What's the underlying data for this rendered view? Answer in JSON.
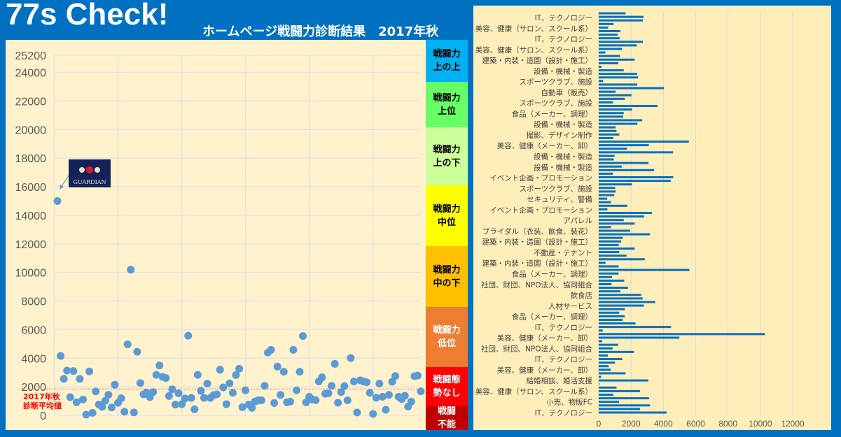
{
  "header": {
    "title": "77s Check!",
    "subtitle": "ホームページ戦闘力診断結果　2017年秋"
  },
  "bands": [
    {
      "label": "戦闘力\n上の上",
      "color": "#00b0f0",
      "text_color": "#000000"
    },
    {
      "label": "戦闘力\n上位",
      "color": "#66ff66",
      "text_color": "#000000"
    },
    {
      "label": "戦闘力\n上の下",
      "color": "#ccff99",
      "text_color": "#000000"
    },
    {
      "label": "戦闘力\n中位",
      "color": "#ffff00",
      "text_color": "#000000"
    },
    {
      "label": "戦闘力\n中の下",
      "color": "#ffc000",
      "text_color": "#000000"
    },
    {
      "label": "戦闘力\n低位",
      "color": "#ed7d31",
      "text_color": "#ffffff"
    },
    {
      "label": "戦闘態\n勢なし",
      "color": "#ff0000",
      "text_color": "#ffffff"
    },
    {
      "label": "戦闘\n不能",
      "color": "#c00000",
      "text_color": "#ffffff"
    }
  ],
  "average_label": "2017年秋\n診断平均値",
  "logo_text": "GUARDIAN",
  "chart_data": [
    {
      "type": "scatter",
      "ylim": [
        0,
        25200
      ],
      "yticks": [
        0,
        2000,
        4000,
        6000,
        8000,
        10000,
        12000,
        14000,
        16000,
        18000,
        20000,
        22000,
        24000,
        25200
      ],
      "xlim": [
        0,
        115
      ],
      "grid": true,
      "average_line": 1850,
      "color": "#5b9bd5",
      "annotation": "GUARDIAN",
      "y": [
        15000,
        4160,
        2550,
        3130,
        1270,
        3100,
        910,
        2550,
        1110,
        50,
        3070,
        170,
        1670,
        750,
        595,
        1020,
        1440,
        550,
        2140,
        880,
        1190,
        250,
        4970,
        10190,
        200,
        4450,
        2260,
        1470,
        1590,
        1270,
        1630,
        2830,
        3490,
        2690,
        2610,
        1350,
        1820,
        750,
        1540,
        780,
        1180,
        5570,
        1220,
        420,
        2830,
        1710,
        1220,
        2220,
        1220,
        1420,
        1470,
        3190,
        1950,
        780,
        2240,
        1570,
        2820,
        3260,
        570,
        1750,
        750,
        520,
        970,
        1050,
        1050,
        2060,
        4390,
        4580,
        860,
        3410,
        1430,
        3050,
        910,
        960,
        4580,
        1750,
        3050,
        5550,
        910,
        1300,
        1110,
        1060,
        2370,
        2660,
        1510,
        1540,
        2060,
        3600,
        880,
        1630,
        2040,
        1050,
        4010,
        2370,
        200,
        2450,
        2370,
        2320,
        1570,
        100,
        1230,
        2220,
        1300,
        390,
        1430,
        2350,
        2750,
        1300,
        1140,
        1370,
        610,
        960,
        2740,
        2780,
        1680
      ]
    },
    {
      "type": "bar",
      "orientation": "horizontal",
      "xlim": [
        0,
        12000
      ],
      "xticks": [
        0,
        2000,
        4000,
        6000,
        8000,
        10000,
        12000
      ],
      "grid": true,
      "color": "#0070c0",
      "category_labels": [
        "IT、テクノロジー",
        "美容、健康（サロン、スクール系）",
        "IT、テクノロジー",
        "美容、健康（サロン、スクール系）",
        "建築・内装・造園（設計・施工）",
        "設備・機械・製造",
        "スポーツクラブ、施設",
        "自動車（販売）",
        "スポーツクラブ、施設",
        "食品（メーカー、調理）",
        "設備・機械・製造",
        "撮影、デザイン制作",
        "美容、健康（メーカー、卸）",
        "設備・機械・製造",
        "設備・機械・製造",
        "イベント企画・プロモーション",
        "スポーツクラブ、施設",
        "セキュリティ、警備",
        "イベント企画・プロモーション",
        "アパレル",
        "ブライダル（衣装、飲食、装花）",
        "建築・内装・造園（設計・施工）",
        "不動産・テナント",
        "建築・内装・造園（設計・施工）",
        "食品（メーカー、調理）",
        "社団、財団、NPO法人、協同組合",
        "飲食店",
        "人材サービス",
        "食品（メーカー、調理）",
        "IT、テクノロジー",
        "美容、健康（メーカー、卸）",
        "社団、財団、NPO法人、協同組合",
        "IT、テクノロジー",
        "美容、健康（メーカー、卸）",
        "結婚相談、婚活支援",
        "美容、健康（サロン、スクール系）",
        "小売、物販FC",
        "IT、テクノロジー"
      ],
      "values": [
        1664,
        2774,
        2730,
        920,
        584,
        1330,
        1170,
        1300,
        2730,
        2350,
        1430,
        410,
        1330,
        2220,
        1210,
        175,
        1550,
        2370,
        2440,
        263,
        2380,
        4030,
        1050,
        2030,
        1620,
        876,
        3650,
        2070,
        1550,
        1520,
        2690,
        2390,
        1050,
        1100,
        1280,
        905,
        5580,
        3100,
        1750,
        4600,
        980,
        934,
        3080,
        1420,
        3430,
        876,
        4610,
        4450,
        2060,
        1020,
        1050,
        960,
        526,
        760,
        1770,
        540,
        3290,
        2820,
        1550,
        2230,
        760,
        1940,
        3170,
        1490,
        1390,
        1240,
        2230,
        1270,
        1720,
        2850,
        423,
        1230,
        5610,
        1230,
        818,
        1580,
        790,
        1810,
        1340,
        2630,
        2720,
        3500,
        2800,
        1620,
        1270,
        1610,
        1490,
        2280,
        4470,
        248,
        10280,
        4990,
        219,
        1200,
        860,
        2180,
        570,
        1450,
        1010,
        610,
        745,
        1660,
        146,
        3070,
        44,
        1100,
        2560,
        905,
        3110,
        1260,
        3170,
        2560,
        4200
      ]
    }
  ]
}
